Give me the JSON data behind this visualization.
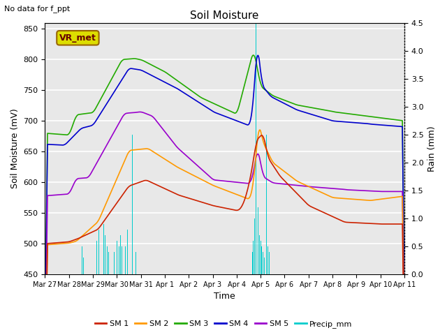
{
  "title": "Soil Moisture",
  "top_left_text": "No data for f_ppt",
  "annotation_box": "VR_met",
  "xlabel": "Time",
  "ylabel_left": "Soil Moisture (mV)",
  "ylabel_right": "Rain (mm)",
  "ylim_left": [
    450,
    860
  ],
  "ylim_right": [
    0.0,
    4.5
  ],
  "yticks_left": [
    450,
    500,
    550,
    600,
    650,
    700,
    750,
    800,
    850
  ],
  "yticks_right": [
    0.0,
    0.5,
    1.0,
    1.5,
    2.0,
    2.5,
    3.0,
    3.5,
    4.0,
    4.5
  ],
  "xtick_labels": [
    "Mar 27",
    "Mar 28",
    "Mar 29",
    "Mar 30",
    "Mar 31",
    "Apr 1",
    "Apr 2",
    "Apr 3",
    "Apr 4",
    "Apr 5",
    "Apr 6",
    "Apr 7",
    "Apr 8",
    "Apr 9",
    "Apr 10",
    "Apr 11"
  ],
  "plot_bg_color": "#e8e8e8",
  "grid_color": "white",
  "colors": {
    "SM1": "#cc2200",
    "SM2": "#ff9900",
    "SM3": "#22aa00",
    "SM4": "#0000cc",
    "SM5": "#9900cc",
    "Precip": "#00cccc"
  },
  "legend_labels": [
    "SM 1",
    "SM 2",
    "SM 3",
    "SM 4",
    "SM 5",
    "Precip_mm"
  ],
  "n_days": 15
}
